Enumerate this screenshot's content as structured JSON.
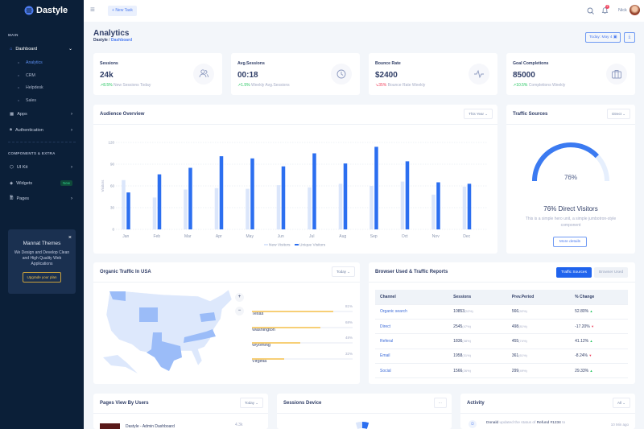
{
  "brand": {
    "name": "Dastyle"
  },
  "sidebar": {
    "section_main": "MAIN",
    "section_components": "COMPONENTS & EXTRA",
    "dashboard": "Dashboard",
    "sub_items": [
      {
        "label": "Analytics",
        "active": true
      },
      {
        "label": "CRM"
      },
      {
        "label": "Helpdesk"
      },
      {
        "label": "Sales"
      }
    ],
    "apps": "Apps",
    "authentication": "Authentication",
    "ui_kit": "UI Kit",
    "widgets": "Widgets",
    "widgets_badge": "New",
    "pages": "Pages",
    "promo": {
      "title": "Mannat Themes",
      "text": "We Design and Develop Clean and High Quality Web Applications",
      "button": "Upgrade your plan",
      "close": "×"
    }
  },
  "topbar": {
    "new_task": "New Task",
    "notification_count": "2",
    "user": "Nick"
  },
  "page": {
    "title": "Analytics",
    "breadcrumb": [
      "Dastyle",
      "Dashboard"
    ],
    "breadcrumb_sep": "/",
    "date_button": "Today:  May 4"
  },
  "stats": [
    {
      "label": "Sessions",
      "value": "24k",
      "change": "8.5%",
      "change_text": "New Sessions Today",
      "trend": "up",
      "icon": "users-icon"
    },
    {
      "label": "Avg.Sessions",
      "value": "00:18",
      "change": "1.5%",
      "change_text": "Weekly Avg.Sessions",
      "trend": "up",
      "icon": "clock-icon"
    },
    {
      "label": "Bounce Rate",
      "value": "$2400",
      "change": "35%",
      "change_text": "Bounce Rate Weekly",
      "trend": "down",
      "icon": "activity-icon"
    },
    {
      "label": "Goal Completions",
      "value": "85000",
      "change": "10.5%",
      "change_text": "Completions Weekly",
      "trend": "up",
      "icon": "briefcase-icon"
    }
  ],
  "audience": {
    "title": "Audience Overview",
    "filter": "This Year"
  },
  "chart_data": {
    "type": "bar",
    "categories": [
      "Jan",
      "Feb",
      "Mar",
      "Apr",
      "May",
      "Jun",
      "Jul",
      "Aug",
      "Sep",
      "Oct",
      "Nov",
      "Dec"
    ],
    "series": [
      {
        "name": "New Visitors",
        "color": "#dbe6fb",
        "values": [
          68,
          44,
          55,
          57,
          56,
          61,
          58,
          63,
          60,
          66,
          48,
          59
        ]
      },
      {
        "name": "Unique Visitors",
        "color": "#2c6ff0",
        "values": [
          51,
          76,
          85,
          101,
          98,
          87,
          105,
          91,
          114,
          94,
          65,
          63
        ]
      }
    ],
    "ylabel": "Visitors",
    "ylim": [
      0,
      120
    ],
    "yticks": [
      0,
      30,
      60,
      90,
      120
    ],
    "grid": true,
    "legend": "bottom"
  },
  "traffic": {
    "title": "Traffic Sources",
    "filter": "Direct",
    "percent": 76,
    "percent_label": "76%",
    "heading": "76% Direct Visitors",
    "text": "This is a simple hero unit, a simple jumbotron-style component",
    "button": "More details"
  },
  "organic": {
    "title": "Organic Traffic In USA",
    "filter": "Today",
    "zoom_in": "+",
    "zoom_out": "−",
    "states": [
      {
        "name": "Texas",
        "value": "81%",
        "pct": 81
      },
      {
        "name": "Washington",
        "value": "68%",
        "pct": 68
      },
      {
        "name": "Wyoming",
        "value": "48%",
        "pct": 48
      },
      {
        "name": "Virginia",
        "value": "32%",
        "pct": 32
      }
    ]
  },
  "browser": {
    "title": "Browser Used & Traffic Reports",
    "tabs": [
      "Traffic Sources",
      "Browser Used"
    ],
    "columns": [
      "Channel",
      "Sessions",
      "Prev.Period",
      "% Change"
    ],
    "rows": [
      {
        "channel": "Organic search",
        "sessions": "10853",
        "sessions_pct": "(52%)",
        "prev": "566",
        "prev_pct": "(92%)",
        "change": "52.80%",
        "trend": "up"
      },
      {
        "channel": "Direct",
        "sessions": "2545",
        "sessions_pct": "(47%)",
        "prev": "498",
        "prev_pct": "(81%)",
        "change": "-17.20%",
        "trend": "down"
      },
      {
        "channel": "Referal",
        "sessions": "1836",
        "sessions_pct": "(38%)",
        "prev": "455",
        "prev_pct": "(74%)",
        "change": "41.12%",
        "trend": "up"
      },
      {
        "channel": "Email",
        "sessions": "1958",
        "sessions_pct": "(31%)",
        "prev": "361",
        "prev_pct": "(61%)",
        "change": "-8.24%",
        "trend": "down"
      },
      {
        "channel": "Social",
        "sessions": "1566",
        "sessions_pct": "(26%)",
        "prev": "299",
        "prev_pct": "(49%)",
        "change": "29.33%",
        "trend": "up"
      }
    ]
  },
  "pages_view": {
    "title": "Pages View By Users",
    "filter": "Today",
    "items": [
      {
        "name": "Dastyle - Admin Dashboard",
        "value": "4.3k"
      }
    ]
  },
  "sessions_device": {
    "title": "Sessions Device",
    "menu": "···"
  },
  "activity": {
    "title": "Activity",
    "filter": "All",
    "items": [
      {
        "user": "Donald",
        "action": "updated the status of",
        "target": "Refund #1234",
        "suffix": "to",
        "time": "10 Min ago"
      }
    ]
  },
  "colors": {
    "primary": "#2c6ff0",
    "sidebar": "#0b1f38",
    "success": "#22c55e",
    "danger": "#f0445e",
    "warning": "#f7cf76"
  }
}
